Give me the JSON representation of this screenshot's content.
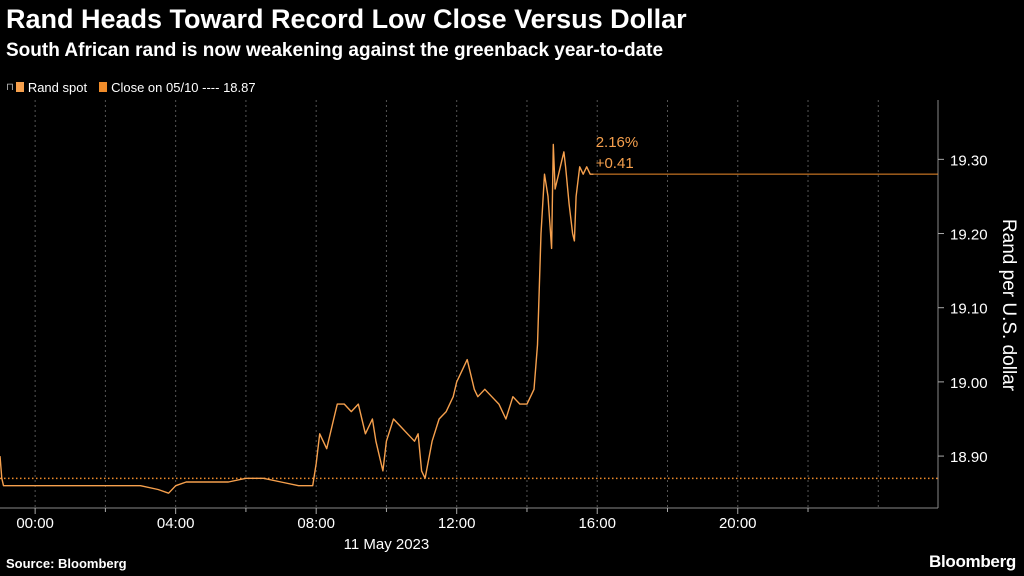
{
  "header": {
    "title": "Rand Heads Toward Record Low Close Versus Dollar",
    "subtitle": "South African rand is now weakening against the greenback year-to-date"
  },
  "legend": {
    "items": [
      {
        "label": "Rand spot",
        "color": "#f6a04d"
      },
      {
        "label": "Close on 05/10 ---- 18.87",
        "color": "#f08c2a"
      }
    ]
  },
  "annotation": {
    "percent": "2.16%",
    "change": "+0.41"
  },
  "footer": {
    "source": "Source: Bloomberg",
    "brand": "Bloomberg"
  },
  "colors": {
    "background": "#000000",
    "series": "#f6a04d",
    "reference": "#f08c2a",
    "grid": "#555555",
    "axis_text": "#ffffff"
  },
  "chart_data": {
    "type": "line",
    "title": "Rand Heads Toward Record Low Close Versus Dollar",
    "subtitle": "South African rand is now weakening against the greenback year-to-date",
    "xlabel": "11 May 2023",
    "ylabel": "Rand per U.S. dollar",
    "x_tick_labels": [
      "00:00",
      "04:00",
      "08:00",
      "12:00",
      "16:00",
      "20:00"
    ],
    "x_ticks_hours": [
      0,
      4,
      8,
      12,
      16,
      20
    ],
    "xlim_hours": [
      -1,
      25.7
    ],
    "y_tick_labels": [
      "19.30",
      "19.20",
      "19.10",
      "19.00",
      "18.90"
    ],
    "y_ticks": [
      19.3,
      19.2,
      19.1,
      19.0,
      18.9
    ],
    "ylim": [
      18.83,
      19.38
    ],
    "grid": "vertical dashed",
    "legend_position": "top-left",
    "y_axis_position": "right",
    "series": [
      {
        "name": "Rand spot",
        "x_hours": [
          -1.0,
          -0.95,
          -0.9,
          -0.5,
          0.0,
          0.5,
          1.0,
          1.5,
          2.0,
          2.5,
          3.0,
          3.5,
          3.8,
          4.0,
          4.3,
          4.7,
          5.0,
          5.5,
          6.0,
          6.5,
          7.0,
          7.5,
          7.9,
          8.0,
          8.1,
          8.3,
          8.5,
          8.6,
          8.8,
          9.0,
          9.2,
          9.4,
          9.6,
          9.7,
          9.8,
          9.9,
          10.0,
          10.2,
          10.4,
          10.6,
          10.8,
          10.9,
          11.0,
          11.1,
          11.3,
          11.5,
          11.7,
          11.9,
          12.0,
          12.2,
          12.3,
          12.5,
          12.6,
          12.8,
          13.0,
          13.2,
          13.4,
          13.6,
          13.8,
          14.0,
          14.2,
          14.3,
          14.4,
          14.5,
          14.6,
          14.7,
          14.75,
          14.8,
          14.9,
          15.0,
          15.05,
          15.1,
          15.2,
          15.3,
          15.35,
          15.4,
          15.5,
          15.6,
          15.7,
          15.8,
          15.9
        ],
        "values": [
          18.9,
          18.87,
          18.86,
          18.86,
          18.86,
          18.86,
          18.86,
          18.86,
          18.86,
          18.86,
          18.86,
          18.855,
          18.85,
          18.86,
          18.865,
          18.865,
          18.865,
          18.865,
          18.87,
          18.87,
          18.865,
          18.86,
          18.86,
          18.89,
          18.93,
          18.91,
          18.95,
          18.97,
          18.97,
          18.96,
          18.97,
          18.93,
          18.95,
          18.92,
          18.9,
          18.88,
          18.92,
          18.95,
          18.94,
          18.93,
          18.92,
          18.93,
          18.88,
          18.87,
          18.92,
          18.95,
          18.96,
          18.98,
          19.0,
          19.02,
          19.03,
          18.99,
          18.98,
          18.99,
          18.98,
          18.97,
          18.95,
          18.98,
          18.97,
          18.97,
          18.99,
          19.05,
          19.2,
          19.28,
          19.25,
          19.18,
          19.32,
          19.26,
          19.28,
          19.3,
          19.31,
          19.29,
          19.24,
          19.2,
          19.19,
          19.25,
          19.29,
          19.28,
          19.29,
          19.28,
          19.28
        ]
      },
      {
        "name": "Close on 05/10 ---- 18.87",
        "style": "dotted horizontal reference",
        "value": 18.87
      }
    ],
    "last_value_line": 19.28
  }
}
